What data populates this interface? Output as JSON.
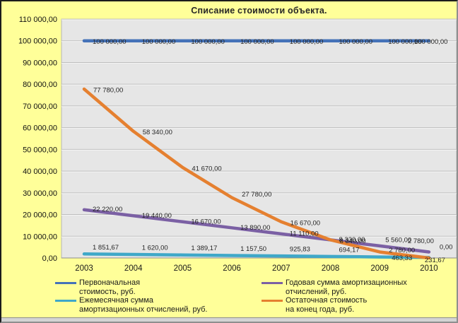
{
  "chart_data": {
    "type": "line",
    "title": "Списание стоимости объекта.",
    "categories": [
      "2003",
      "2004",
      "2005",
      "2006",
      "2007",
      "2008",
      "2009",
      "2010"
    ],
    "xlabel": "",
    "ylabel": "",
    "ylim": [
      0,
      110000
    ],
    "grid": true,
    "legend_position": "bottom",
    "y_ticks": [
      "110 000,00",
      "100 000,00",
      "90 000,00",
      "80 000,00",
      "70 000,00",
      "60 000,00",
      "50 000,00",
      "40 000,00",
      "30 000,00",
      "20 000,00",
      "10 000,00",
      "0,00"
    ],
    "plot_bg_color": "#E6E6E6",
    "page_bg_color": "#FFFF99",
    "series": [
      {
        "name": "Первоначальная стоимость, руб.",
        "color": "#4472B8",
        "values": [
          100000,
          100000,
          100000,
          100000,
          100000,
          100000,
          100000,
          100000
        ],
        "labels": [
          "100 000,00",
          "100 000,00",
          "100 000,00",
          "100 000,00",
          "100 000,00",
          "100 000,00",
          "100 000,00",
          "100 000,00"
        ]
      },
      {
        "name": "Годовая сумма амортизационных отчислений, руб.",
        "color": "#7B60A4",
        "values": [
          22220,
          19440,
          16670,
          13890,
          11110,
          8330,
          5560,
          2780
        ],
        "labels": [
          "22 220,00",
          "19 440,00",
          "16 670,00",
          "13 890,00",
          "11 110,00",
          "8 330,00",
          "5 560,00",
          "2 780,00"
        ]
      },
      {
        "name": "Ежемесячная сумма амортизационных отчислений, руб.",
        "color": "#3FA8C8",
        "values": [
          1851.67,
          1620.0,
          1389.17,
          1157.5,
          925.83,
          694.17,
          463.33,
          231.67
        ],
        "labels": [
          "1 851,67",
          "1 620,00",
          "1 389,17",
          "1 157,50",
          "925,83",
          "694,17",
          "463,33",
          "231,67"
        ]
      },
      {
        "name": "Остаточная стоимость на конец года, руб.",
        "color": "#E58030",
        "values": [
          77780,
          58340,
          41670,
          27780,
          16670,
          8340,
          2780,
          0
        ],
        "labels": [
          "77 780,00",
          "58 340,00",
          "41 670,00",
          "27 780,00",
          "16 670,00",
          "8 340,00",
          "2 780,00",
          "0,00"
        ]
      }
    ]
  },
  "legend": {
    "items": [
      {
        "series": 0,
        "line1": "Первоначальная",
        "line2": "стоимость, руб."
      },
      {
        "series": 2,
        "line1": "Ежемесячная сумма",
        "line2": "амортизационных отчислений, руб."
      },
      {
        "series": 1,
        "line1": "Годовая сумма амортизационных",
        "line2": "отчислений, руб."
      },
      {
        "series": 3,
        "line1": "Остаточная стоимость",
        "line2": "на конец года, руб."
      }
    ]
  }
}
